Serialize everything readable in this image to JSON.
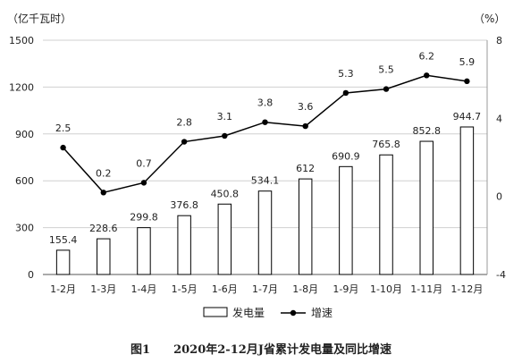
{
  "chart_data": {
    "type": "bar+line",
    "title": "图1　　2020年2-12月J省累计发电量及同比增速",
    "left_axis_unit": "（亿千瓦时）",
    "right_axis_unit": "（%）",
    "categories": [
      "1-2月",
      "1-3月",
      "1-4月",
      "1-5月",
      "1-6月",
      "1-7月",
      "1-8月",
      "1-9月",
      "1-10月",
      "1-11月",
      "1-12月"
    ],
    "bar_series": {
      "name": "发电量",
      "values": [
        155.4,
        228.6,
        299.8,
        376.8,
        450.8,
        534.1,
        612,
        690.9,
        765.8,
        852.8,
        944.7
      ],
      "labels": [
        "155.4",
        "228.6",
        "299.8",
        "376.8",
        "450.8",
        "534.1",
        "612",
        "690.9",
        "765.8",
        "852.8",
        "944.7"
      ]
    },
    "line_series": {
      "name": "增速",
      "values": [
        2.5,
        0.2,
        0.7,
        2.8,
        3.1,
        3.8,
        3.6,
        5.3,
        5.5,
        6.2,
        5.9
      ],
      "labels": [
        "2.5",
        "0.2",
        "0.7",
        "2.8",
        "3.1",
        "3.8",
        "3.6",
        "5.3",
        "5.5",
        "6.2",
        "5.9"
      ]
    },
    "left_axis": {
      "min": 0,
      "max": 1500,
      "ticks": [
        "0",
        "300",
        "600",
        "900",
        "1200",
        "1500"
      ]
    },
    "right_axis": {
      "min": -4,
      "max": 8,
      "ticks": [
        "-4",
        "0",
        "4",
        "8"
      ]
    },
    "legend_position": "bottom",
    "grid": true,
    "colors": {
      "bar_fill": "#ffffff",
      "bar_stroke": "#000000",
      "line": "#000000",
      "grid": "#d0d0d0"
    }
  }
}
